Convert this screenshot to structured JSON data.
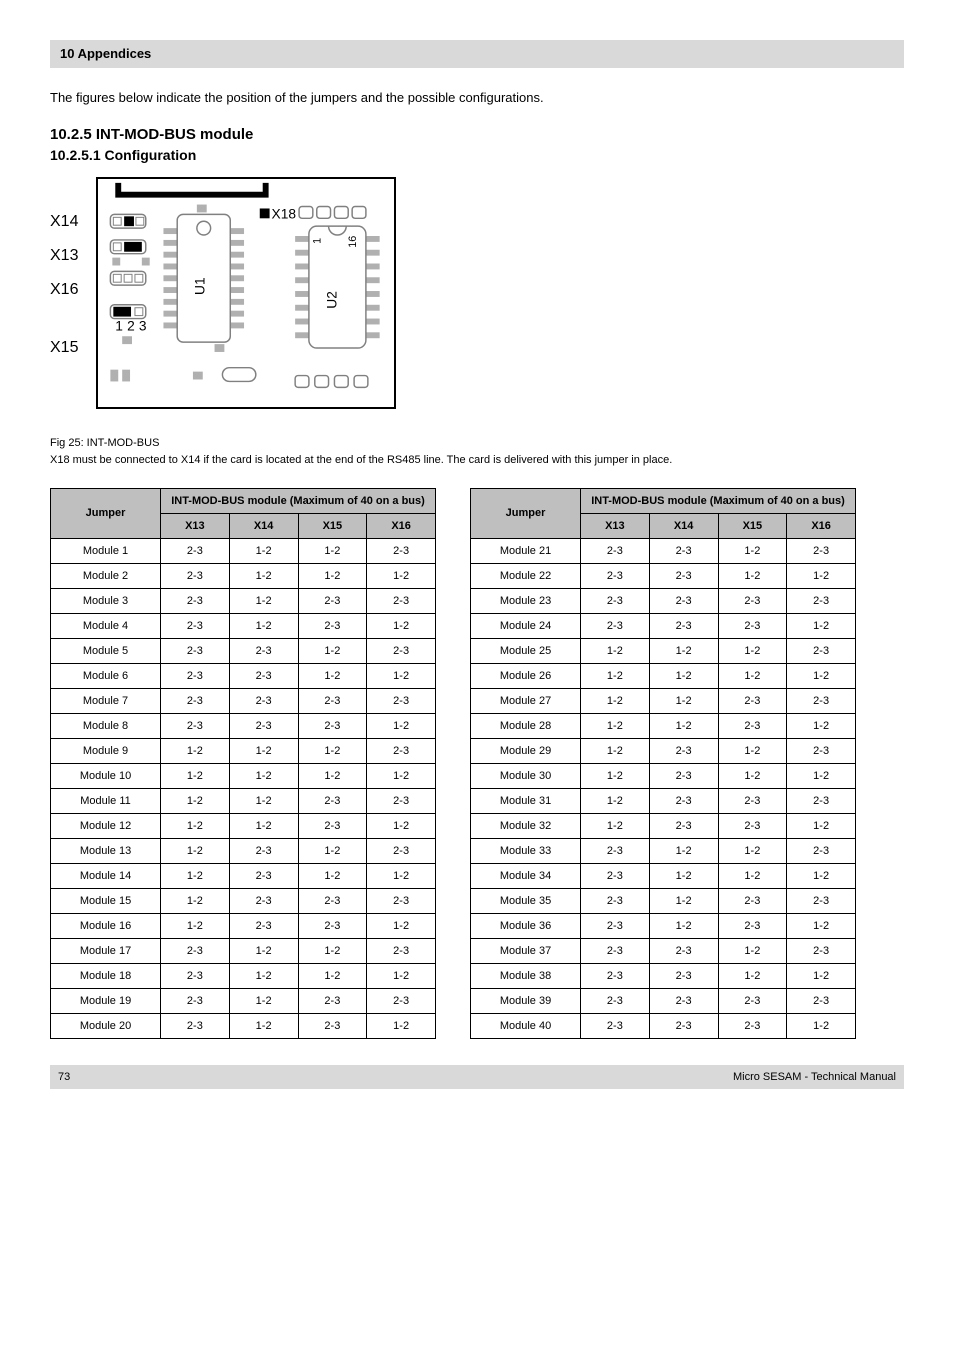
{
  "header": {
    "title": "10  Appendices"
  },
  "intro": "The figures below indicate the position of the jumpers and the possible configurations.",
  "section": "10.2.5 INT-MOD-BUS module",
  "subsection": "10.2.5.1 Configuration",
  "diagram": {
    "labels": [
      "X14",
      "X13",
      "X16",
      "X15"
    ],
    "pin_numbers": [
      "1",
      "2",
      "3"
    ],
    "u1": "U1",
    "u2": "U2",
    "pins_right": [
      "1",
      "16"
    ],
    "x18": "X18"
  },
  "caption": "Fig 25: INT-MOD-BUS",
  "note": "X18 must be connected to X14 if the card is located at the end of the RS485 line. The card is delivered with this jumper in place.",
  "table_left": {
    "main_header": "Jumper",
    "mode_header": "INT-MOD-BUS module (Maximum of 40 on a bus)",
    "sub_headers": [
      "X13",
      "X14",
      "X15",
      "X16"
    ],
    "rows": [
      [
        "Module 1",
        "2-3",
        "1-2",
        "1-2",
        "2-3"
      ],
      [
        "Module 2",
        "2-3",
        "1-2",
        "1-2",
        "1-2"
      ],
      [
        "Module 3",
        "2-3",
        "1-2",
        "2-3",
        "2-3"
      ],
      [
        "Module 4",
        "2-3",
        "1-2",
        "2-3",
        "1-2"
      ],
      [
        "Module 5",
        "2-3",
        "2-3",
        "1-2",
        "2-3"
      ],
      [
        "Module 6",
        "2-3",
        "2-3",
        "1-2",
        "1-2"
      ],
      [
        "Module 7",
        "2-3",
        "2-3",
        "2-3",
        "2-3"
      ],
      [
        "Module 8",
        "2-3",
        "2-3",
        "2-3",
        "1-2"
      ],
      [
        "Module 9",
        "1-2",
        "1-2",
        "1-2",
        "2-3"
      ],
      [
        "Module 10",
        "1-2",
        "1-2",
        "1-2",
        "1-2"
      ],
      [
        "Module 11",
        "1-2",
        "1-2",
        "2-3",
        "2-3"
      ],
      [
        "Module 12",
        "1-2",
        "1-2",
        "2-3",
        "1-2"
      ],
      [
        "Module 13",
        "1-2",
        "2-3",
        "1-2",
        "2-3"
      ],
      [
        "Module 14",
        "1-2",
        "2-3",
        "1-2",
        "1-2"
      ],
      [
        "Module 15",
        "1-2",
        "2-3",
        "2-3",
        "2-3"
      ],
      [
        "Module 16",
        "1-2",
        "2-3",
        "2-3",
        "1-2"
      ],
      [
        "Module 17",
        "2-3",
        "1-2",
        "1-2",
        "2-3"
      ],
      [
        "Module 18",
        "2-3",
        "1-2",
        "1-2",
        "1-2"
      ],
      [
        "Module 19",
        "2-3",
        "1-2",
        "2-3",
        "2-3"
      ],
      [
        "Module 20",
        "2-3",
        "1-2",
        "2-3",
        "1-2"
      ]
    ]
  },
  "table_right": {
    "main_header": "Jumper",
    "mode_header": "INT-MOD-BUS module (Maximum of 40 on a bus)",
    "sub_headers": [
      "X13",
      "X14",
      "X15",
      "X16"
    ],
    "rows": [
      [
        "Module 21",
        "2-3",
        "2-3",
        "1-2",
        "2-3"
      ],
      [
        "Module 22",
        "2-3",
        "2-3",
        "1-2",
        "1-2"
      ],
      [
        "Module 23",
        "2-3",
        "2-3",
        "2-3",
        "2-3"
      ],
      [
        "Module 24",
        "2-3",
        "2-3",
        "2-3",
        "1-2"
      ],
      [
        "Module 25",
        "1-2",
        "1-2",
        "1-2",
        "2-3"
      ],
      [
        "Module 26",
        "1-2",
        "1-2",
        "1-2",
        "1-2"
      ],
      [
        "Module 27",
        "1-2",
        "1-2",
        "2-3",
        "2-3"
      ],
      [
        "Module 28",
        "1-2",
        "1-2",
        "2-3",
        "1-2"
      ],
      [
        "Module 29",
        "1-2",
        "2-3",
        "1-2",
        "2-3"
      ],
      [
        "Module 30",
        "1-2",
        "2-3",
        "1-2",
        "1-2"
      ],
      [
        "Module 31",
        "1-2",
        "2-3",
        "2-3",
        "2-3"
      ],
      [
        "Module 32",
        "1-2",
        "2-3",
        "2-3",
        "1-2"
      ],
      [
        "Module 33",
        "2-3",
        "1-2",
        "1-2",
        "2-3"
      ],
      [
        "Module 34",
        "2-3",
        "1-2",
        "1-2",
        "1-2"
      ],
      [
        "Module 35",
        "2-3",
        "1-2",
        "2-3",
        "2-3"
      ],
      [
        "Module 36",
        "2-3",
        "1-2",
        "2-3",
        "1-2"
      ],
      [
        "Module 37",
        "2-3",
        "2-3",
        "1-2",
        "2-3"
      ],
      [
        "Module 38",
        "2-3",
        "2-3",
        "1-2",
        "1-2"
      ],
      [
        "Module 39",
        "2-3",
        "2-3",
        "2-3",
        "2-3"
      ],
      [
        "Module 40",
        "2-3",
        "2-3",
        "2-3",
        "1-2"
      ]
    ]
  },
  "footer": {
    "page": "73",
    "doc": "Micro SESAM - Technical Manual"
  },
  "colors": {
    "header_bg": "#d9d9d9",
    "table_head_bg": "#bfbfbf",
    "border": "#000000",
    "chip_pin": "#b0b0b0",
    "pad_outline": "#808080"
  }
}
